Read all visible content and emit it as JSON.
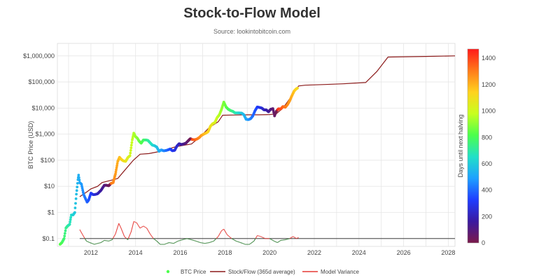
{
  "header": {
    "title": "Stock-to-Flow Model",
    "subtitle": "Source: lookintobitcoin.com"
  },
  "colors": {
    "stock_flow": "#8b1a1a",
    "model_variance": "#e53935",
    "variance_low": "#2e7d32",
    "baseline": "#222222",
    "grid": "#e6e6e6"
  },
  "chart_data": {
    "type": "scatter",
    "title": "Stock-to-Flow Model",
    "subtitle": "Source: lookintobitcoin.com",
    "xlabel": "",
    "ylabel": "BTC Price (USD)",
    "y_scale": "log",
    "xlim": [
      2010.5,
      2028.3
    ],
    "ylim": [
      0.05,
      3000000
    ],
    "x_ticks": [
      "2012",
      "2014",
      "2016",
      "2018",
      "2020",
      "2022",
      "2024",
      "2026",
      "2028"
    ],
    "y_ticks": [
      "$0.1",
      "$1",
      "$10",
      "$100",
      "$1,000",
      "$10,000",
      "$100,000",
      "$1,000,000"
    ],
    "legend": [
      "BTC Price",
      "Stock/Flow (365d average)",
      "Model Variance"
    ],
    "legend_position": "bottom",
    "colorbar": {
      "title": "Days until next halving",
      "range": [
        0,
        1470
      ],
      "ticks": [
        "0",
        "200",
        "400",
        "600",
        "800",
        "1000",
        "1200",
        "1400"
      ],
      "colors": [
        "#7b1a4a",
        "#3a1aa0",
        "#1f3dff",
        "#1ea0ff",
        "#22e0c8",
        "#4cff4c",
        "#c8ff1e",
        "#ffd21e",
        "#ff7a1a",
        "#ff1a1a"
      ]
    },
    "series": [
      {
        "name": "BTC Price",
        "points": [
          [
            2010.62,
            0.06
          ],
          [
            2010.7,
            0.07
          ],
          [
            2010.8,
            0.1
          ],
          [
            2010.88,
            0.25
          ],
          [
            2010.95,
            0.3
          ],
          [
            2011.05,
            0.35
          ],
          [
            2011.12,
            0.8
          ],
          [
            2011.2,
            0.8
          ],
          [
            2011.28,
            1.0
          ],
          [
            2011.35,
            5
          ],
          [
            2011.42,
            18
          ],
          [
            2011.45,
            27
          ],
          [
            2011.5,
            14
          ],
          [
            2011.58,
            12
          ],
          [
            2011.67,
            5
          ],
          [
            2011.75,
            3.5
          ],
          [
            2011.83,
            2.5
          ],
          [
            2011.9,
            3
          ],
          [
            2012.0,
            5.5
          ],
          [
            2012.1,
            4.8
          ],
          [
            2012.2,
            4.9
          ],
          [
            2012.3,
            5.2
          ],
          [
            2012.45,
            7
          ],
          [
            2012.6,
            11
          ],
          [
            2012.7,
            11
          ],
          [
            2012.8,
            10.5
          ],
          [
            2012.9,
            13
          ],
          [
            2013.0,
            14
          ],
          [
            2013.1,
            30
          ],
          [
            2013.2,
            90
          ],
          [
            2013.28,
            130
          ],
          [
            2013.35,
            110
          ],
          [
            2013.45,
            95
          ],
          [
            2013.55,
            90
          ],
          [
            2013.65,
            125
          ],
          [
            2013.75,
            150
          ],
          [
            2013.85,
            600
          ],
          [
            2013.92,
            1100
          ],
          [
            2014.0,
            800
          ],
          [
            2014.08,
            700
          ],
          [
            2014.15,
            550
          ],
          [
            2014.25,
            450
          ],
          [
            2014.35,
            600
          ],
          [
            2014.45,
            600
          ],
          [
            2014.55,
            580
          ],
          [
            2014.65,
            470
          ],
          [
            2014.75,
            380
          ],
          [
            2014.85,
            360
          ],
          [
            2014.95,
            320
          ],
          [
            2015.05,
            220
          ],
          [
            2015.15,
            250
          ],
          [
            2015.25,
            230
          ],
          [
            2015.35,
            235
          ],
          [
            2015.45,
            250
          ],
          [
            2015.55,
            270
          ],
          [
            2015.65,
            230
          ],
          [
            2015.75,
            240
          ],
          [
            2015.85,
            350
          ],
          [
            2015.95,
            430
          ],
          [
            2016.05,
            400
          ],
          [
            2016.15,
            420
          ],
          [
            2016.25,
            450
          ],
          [
            2016.35,
            550
          ],
          [
            2016.45,
            670
          ],
          [
            2016.55,
            620
          ],
          [
            2016.65,
            610
          ],
          [
            2016.75,
            650
          ],
          [
            2016.85,
            740
          ],
          [
            2016.95,
            900
          ],
          [
            2017.05,
            1000
          ],
          [
            2017.15,
            1100
          ],
          [
            2017.25,
            1250
          ],
          [
            2017.35,
            2000
          ],
          [
            2017.45,
            2500
          ],
          [
            2017.55,
            2800
          ],
          [
            2017.65,
            4300
          ],
          [
            2017.75,
            5500
          ],
          [
            2017.85,
            9000
          ],
          [
            2017.95,
            17000
          ],
          [
            2018.05,
            11000
          ],
          [
            2018.15,
            9000
          ],
          [
            2018.25,
            8000
          ],
          [
            2018.35,
            7500
          ],
          [
            2018.45,
            6500
          ],
          [
            2018.55,
            6500
          ],
          [
            2018.65,
            6500
          ],
          [
            2018.75,
            6400
          ],
          [
            2018.85,
            5500
          ],
          [
            2018.95,
            3700
          ],
          [
            2019.05,
            3600
          ],
          [
            2019.15,
            3900
          ],
          [
            2019.25,
            5000
          ],
          [
            2019.35,
            8000
          ],
          [
            2019.45,
            11000
          ],
          [
            2019.55,
            10500
          ],
          [
            2019.65,
            10000
          ],
          [
            2019.75,
            8500
          ],
          [
            2019.85,
            8500
          ],
          [
            2019.95,
            7200
          ],
          [
            2020.05,
            9000
          ],
          [
            2020.15,
            9500
          ],
          [
            2020.22,
            5000
          ],
          [
            2020.3,
            7500
          ],
          [
            2020.4,
            9400
          ],
          [
            2020.5,
            9200
          ],
          [
            2020.6,
            11500
          ],
          [
            2020.7,
            10700
          ],
          [
            2020.8,
            13500
          ],
          [
            2020.9,
            19000
          ],
          [
            2021.0,
            30000
          ],
          [
            2021.1,
            45000
          ],
          [
            2021.2,
            55000
          ],
          [
            2021.25,
            58000
          ]
        ]
      },
      {
        "name": "Stock/Flow (365d average)",
        "points": [
          [
            2011.5,
            4
          ],
          [
            2011.8,
            6
          ],
          [
            2012.0,
            8
          ],
          [
            2012.3,
            10
          ],
          [
            2012.5,
            14
          ],
          [
            2012.9,
            17
          ],
          [
            2013.2,
            20
          ],
          [
            2013.5,
            40
          ],
          [
            2013.9,
            100
          ],
          [
            2014.2,
            170
          ],
          [
            2014.6,
            180
          ],
          [
            2015.0,
            210
          ],
          [
            2015.4,
            260
          ],
          [
            2015.8,
            330
          ],
          [
            2016.2,
            380
          ],
          [
            2016.5,
            420
          ],
          [
            2016.9,
            800
          ],
          [
            2017.3,
            1800
          ],
          [
            2017.7,
            3000
          ],
          [
            2017.9,
            5300
          ],
          [
            2018.4,
            5400
          ],
          [
            2019.0,
            5500
          ],
          [
            2019.5,
            5500
          ],
          [
            2020.0,
            5600
          ],
          [
            2020.3,
            6000
          ],
          [
            2020.6,
            10000
          ],
          [
            2021.0,
            30000
          ],
          [
            2021.3,
            70000
          ],
          [
            2021.6,
            75000
          ],
          [
            2022.5,
            80000
          ],
          [
            2023.3,
            85000
          ],
          [
            2024.3,
            95000
          ],
          [
            2024.8,
            250000
          ],
          [
            2025.3,
            900000
          ],
          [
            2026.0,
            920000
          ],
          [
            2027.0,
            950000
          ],
          [
            2028.3,
            1000000
          ]
        ]
      },
      {
        "name": "Model Variance",
        "points": [
          [
            2011.5,
            0.22
          ],
          [
            2011.65,
            0.13
          ],
          [
            2011.8,
            0.08
          ],
          [
            2011.95,
            0.07
          ],
          [
            2012.15,
            0.06
          ],
          [
            2012.3,
            0.065
          ],
          [
            2012.45,
            0.07
          ],
          [
            2012.6,
            0.085
          ],
          [
            2012.8,
            0.08
          ],
          [
            2012.95,
            0.09
          ],
          [
            2013.1,
            0.15
          ],
          [
            2013.25,
            0.38
          ],
          [
            2013.35,
            0.25
          ],
          [
            2013.5,
            0.12
          ],
          [
            2013.65,
            0.09
          ],
          [
            2013.8,
            0.18
          ],
          [
            2013.92,
            0.45
          ],
          [
            2014.05,
            0.4
          ],
          [
            2014.2,
            0.25
          ],
          [
            2014.35,
            0.3
          ],
          [
            2014.5,
            0.25
          ],
          [
            2014.65,
            0.15
          ],
          [
            2014.8,
            0.1
          ],
          [
            2014.95,
            0.08
          ],
          [
            2015.1,
            0.06
          ],
          [
            2015.3,
            0.06
          ],
          [
            2015.5,
            0.07
          ],
          [
            2015.7,
            0.065
          ],
          [
            2015.9,
            0.08
          ],
          [
            2016.1,
            0.09
          ],
          [
            2016.3,
            0.1
          ],
          [
            2016.5,
            0.09
          ],
          [
            2016.7,
            0.08
          ],
          [
            2016.9,
            0.07
          ],
          [
            2017.1,
            0.065
          ],
          [
            2017.3,
            0.07
          ],
          [
            2017.5,
            0.08
          ],
          [
            2017.7,
            0.12
          ],
          [
            2017.85,
            0.2
          ],
          [
            2017.95,
            0.23
          ],
          [
            2018.1,
            0.14
          ],
          [
            2018.3,
            0.1
          ],
          [
            2018.5,
            0.08
          ],
          [
            2018.7,
            0.07
          ],
          [
            2018.9,
            0.06
          ],
          [
            2019.1,
            0.06
          ],
          [
            2019.3,
            0.08
          ],
          [
            2019.45,
            0.13
          ],
          [
            2019.6,
            0.12
          ],
          [
            2019.8,
            0.1
          ],
          [
            2020.0,
            0.1
          ],
          [
            2020.2,
            0.08
          ],
          [
            2020.35,
            0.07
          ],
          [
            2020.5,
            0.085
          ],
          [
            2020.7,
            0.09
          ],
          [
            2020.9,
            0.1
          ],
          [
            2021.05,
            0.12
          ],
          [
            2021.2,
            0.1
          ],
          [
            2021.3,
            0.11
          ]
        ]
      }
    ]
  }
}
